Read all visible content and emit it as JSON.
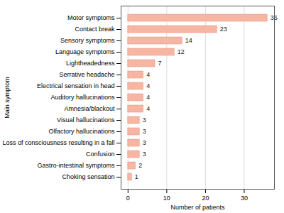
{
  "chart_data": {
    "type": "bar",
    "orientation": "horizontal",
    "x_label": "Number of patients",
    "y_label": "Main symptom",
    "categories": [
      "Motor symptoms",
      "Contact break",
      "Sensory symptoms",
      "Language symptoms",
      "Lightheadedness",
      "Serrative headache",
      "Electrical sensation in head",
      "Auditory hallucinations",
      "Amnesia/blackout",
      "Visual hallucinations",
      "Olfactory hallucinations",
      "Loss of consciousness resulting in a fall",
      "Confusion",
      "Gastro-intestinal symptoms",
      "Choking sensation"
    ],
    "values": [
      36,
      23,
      14,
      12,
      7,
      4,
      4,
      4,
      4,
      3,
      3,
      3,
      3,
      2,
      1
    ],
    "color": "#f7b5a3",
    "xlim": [
      -1.8,
      37.8
    ],
    "xticks": [
      0,
      10,
      20,
      30
    ],
    "grid": true,
    "data_labels": true
  }
}
